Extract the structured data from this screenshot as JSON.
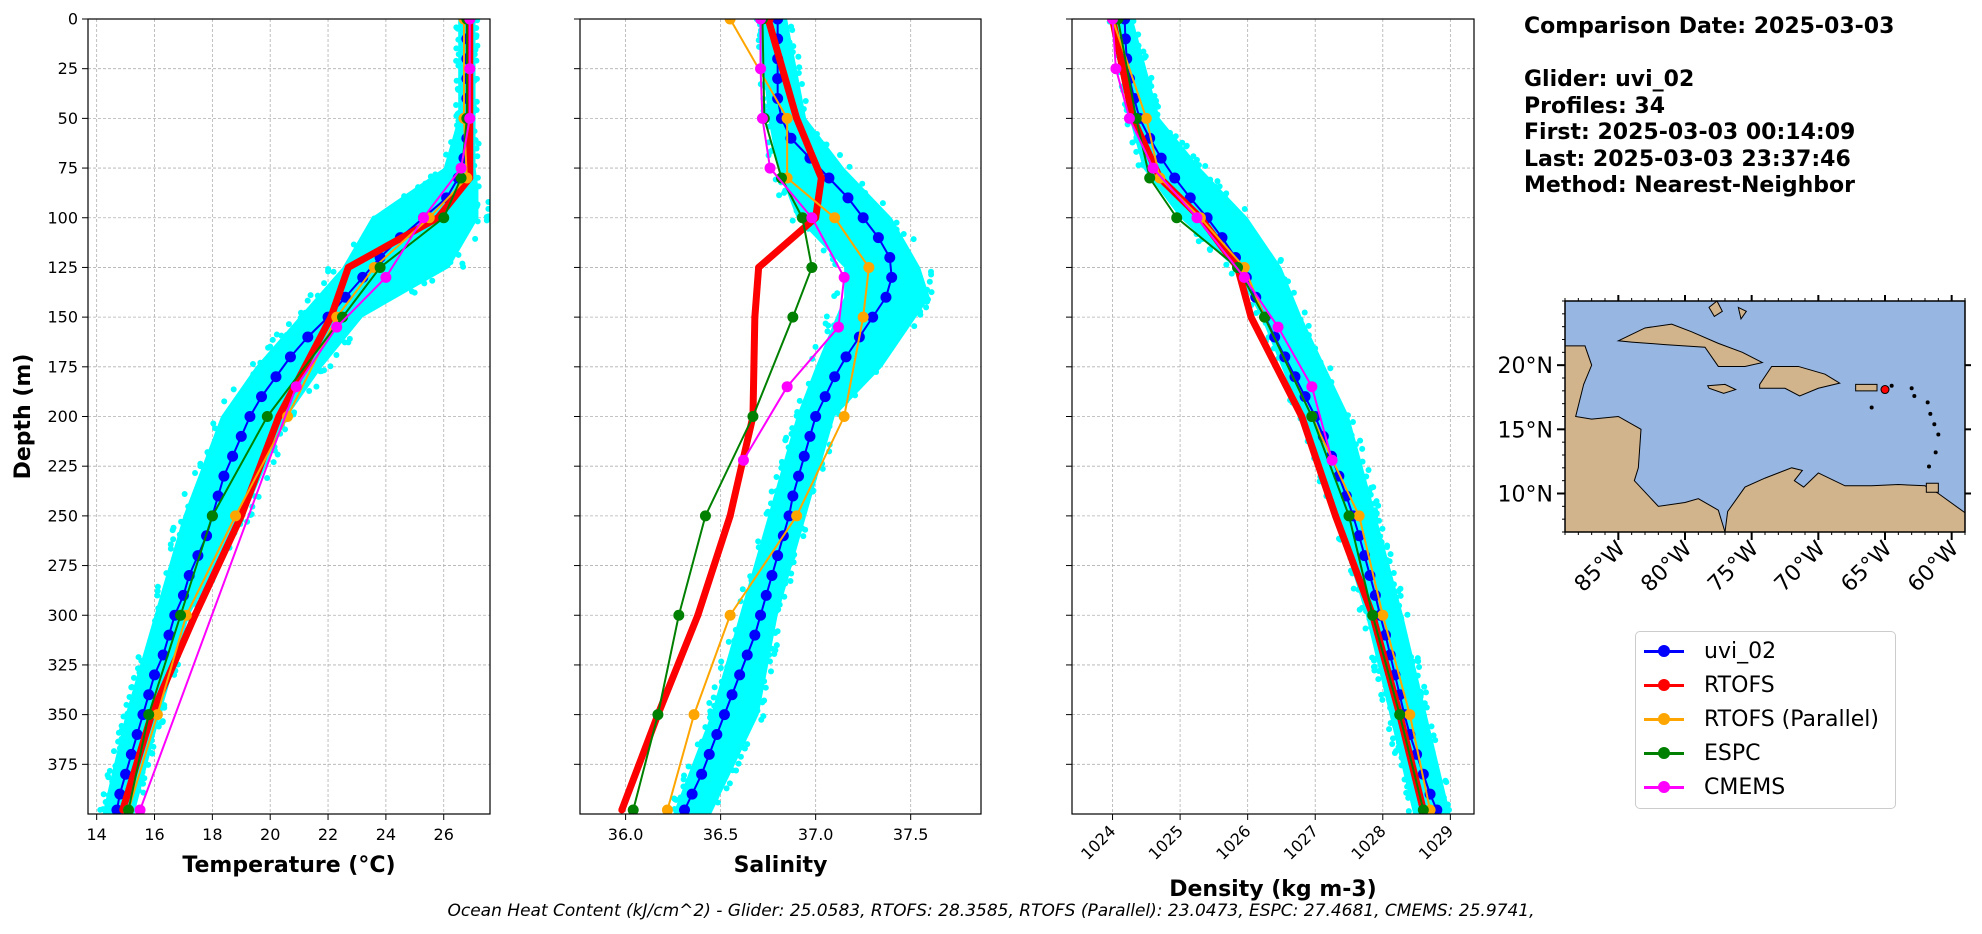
{
  "info": {
    "comparison_date": "Comparison Date: 2025-03-03",
    "glider": "Glider: uvi_02",
    "profiles": "Profiles: 34",
    "first": "First: 2025-03-03 00:14:09",
    "last": "Last: 2025-03-03 23:37:46",
    "method": "Method: Nearest-Neighbor"
  },
  "footer": {
    "ohc_text": "Ocean Heat Content (kJ/cm^2) - Glider: 25.0583,  RTOFS: 28.3585,  RTOFS (Parallel): 23.0473,  ESPC: 27.4681,  CMEMS: 25.9741,"
  },
  "colors": {
    "uvi_02": "#0000ff",
    "RTOFS": "#ff0000",
    "RTOFS (Parallel)": "#ffa500",
    "ESPC": "#008000",
    "CMEMS": "#ff00ff",
    "glider_scatter": "#00ffff",
    "ocean": "#97b6e1",
    "land": "#d2b48c"
  },
  "legend": {
    "items": [
      "uvi_02",
      "RTOFS",
      "RTOFS (Parallel)",
      "ESPC",
      "CMEMS"
    ]
  },
  "map": {
    "lat_ticks": [
      "10°N",
      "15°N",
      "20°N"
    ],
    "lon_ticks": [
      "85°W",
      "80°W",
      "75°W",
      "70°W",
      "65°W",
      "60°W"
    ],
    "lon_range": [
      -89,
      -59
    ],
    "lat_range": [
      7,
      25
    ],
    "glider_position": {
      "lon": -65.0,
      "lat": 18.1
    }
  },
  "chart_data": [
    {
      "type": "line",
      "xlabel": "Temperature (°C)",
      "ylabel": "Depth (m)",
      "xlim": [
        13.7,
        27.6
      ],
      "ylim": [
        400,
        0
      ],
      "x_ticks": [
        14,
        16,
        18,
        20,
        22,
        24,
        26
      ],
      "y_ticks": [
        0,
        25,
        50,
        75,
        100,
        125,
        150,
        175,
        200,
        225,
        250,
        275,
        300,
        325,
        350,
        375
      ],
      "grid": true,
      "glider_envelope": {
        "depth": [
          0,
          50,
          75,
          85,
          100,
          125,
          150,
          175,
          200,
          250,
          300,
          350,
          400
        ],
        "min": [
          26.5,
          26.5,
          26.0,
          25.0,
          23.5,
          22.5,
          21.0,
          19.5,
          18.3,
          17.0,
          16.0,
          15.0,
          14.2
        ],
        "max": [
          27.1,
          27.1,
          27.1,
          27.2,
          27.2,
          26.2,
          23.2,
          21.8,
          20.6,
          19.1,
          17.2,
          16.2,
          15.3
        ]
      },
      "series": [
        {
          "name": "uvi_02",
          "depth": [
            0,
            10,
            20,
            30,
            40,
            50,
            60,
            70,
            80,
            90,
            100,
            110,
            120,
            130,
            140,
            150,
            160,
            170,
            180,
            190,
            200,
            210,
            220,
            230,
            240,
            250,
            260,
            270,
            280,
            290,
            300,
            310,
            320,
            330,
            340,
            350,
            360,
            370,
            380,
            390,
            398
          ],
          "values": [
            26.8,
            26.8,
            26.8,
            26.8,
            26.8,
            26.8,
            26.8,
            26.7,
            26.5,
            26.1,
            25.3,
            24.5,
            23.8,
            23.2,
            22.6,
            22.0,
            21.3,
            20.7,
            20.2,
            19.7,
            19.3,
            19.0,
            18.7,
            18.4,
            18.2,
            18.0,
            17.8,
            17.5,
            17.2,
            17.0,
            16.7,
            16.5,
            16.3,
            16.0,
            15.8,
            15.6,
            15.4,
            15.2,
            15.0,
            14.8,
            14.7
          ]
        },
        {
          "name": "RTOFS",
          "depth": [
            0,
            50,
            80,
            100,
            125,
            150,
            200,
            250,
            300,
            350,
            398
          ],
          "values": [
            26.9,
            26.9,
            26.9,
            25.8,
            22.7,
            22.1,
            20.3,
            19.0,
            17.4,
            15.9,
            14.9
          ]
        },
        {
          "name": "RTOFS (Parallel)",
          "depth": [
            0,
            50,
            80,
            100,
            125,
            150,
            200,
            250,
            300,
            350,
            398
          ],
          "values": [
            26.7,
            26.7,
            26.8,
            25.5,
            23.6,
            22.3,
            20.6,
            18.8,
            17.1,
            16.1,
            15.1
          ]
        },
        {
          "name": "ESPC",
          "depth": [
            0,
            50,
            80,
            100,
            125,
            150,
            200,
            250,
            300,
            350,
            398
          ],
          "values": [
            26.8,
            26.8,
            26.6,
            26.0,
            23.8,
            22.5,
            19.9,
            18.0,
            16.9,
            15.8,
            15.1
          ]
        },
        {
          "name": "CMEMS",
          "depth": [
            0,
            25,
            50,
            75,
            100,
            130,
            155,
            185,
            398
          ],
          "values": [
            26.9,
            26.9,
            26.9,
            26.6,
            25.3,
            24.0,
            22.3,
            20.9,
            15.5
          ]
        }
      ]
    },
    {
      "type": "line",
      "xlabel": "Salinity",
      "xlim": [
        35.76,
        37.87
      ],
      "ylim": [
        400,
        0
      ],
      "x_ticks": [
        36.0,
        36.5,
        37.0,
        37.5
      ],
      "grid": true,
      "glider_envelope": {
        "depth": [
          0,
          50,
          75,
          100,
          125,
          140,
          175,
          200,
          250,
          300,
          350,
          400
        ],
        "min": [
          36.7,
          36.75,
          36.8,
          36.9,
          37.15,
          37.15,
          37.0,
          36.9,
          36.75,
          36.6,
          36.45,
          36.25
        ],
        "max": [
          36.85,
          36.95,
          37.15,
          37.4,
          37.55,
          37.6,
          37.35,
          37.1,
          36.95,
          36.8,
          36.7,
          36.45
        ]
      },
      "series": [
        {
          "name": "uvi_02",
          "depth": [
            0,
            10,
            20,
            30,
            40,
            50,
            60,
            70,
            80,
            90,
            100,
            110,
            120,
            130,
            140,
            150,
            160,
            170,
            180,
            190,
            200,
            210,
            220,
            230,
            240,
            250,
            260,
            270,
            280,
            290,
            300,
            310,
            320,
            330,
            340,
            350,
            360,
            370,
            380,
            390,
            398
          ],
          "values": [
            36.8,
            36.8,
            36.8,
            36.8,
            36.8,
            36.82,
            36.87,
            36.97,
            37.07,
            37.17,
            37.25,
            37.33,
            37.39,
            37.4,
            37.37,
            37.3,
            37.23,
            37.16,
            37.1,
            37.05,
            37.0,
            36.97,
            36.94,
            36.91,
            36.88,
            36.86,
            36.83,
            36.8,
            36.77,
            36.74,
            36.71,
            36.68,
            36.64,
            36.6,
            36.56,
            36.52,
            36.48,
            36.44,
            36.4,
            36.35,
            36.31
          ]
        },
        {
          "name": "RTOFS",
          "depth": [
            0,
            50,
            80,
            100,
            125,
            150,
            200,
            250,
            300,
            350,
            398
          ],
          "values": [
            36.75,
            36.9,
            37.03,
            37.0,
            36.7,
            36.68,
            36.67,
            36.55,
            36.38,
            36.17,
            35.98
          ]
        },
        {
          "name": "RTOFS (Parallel)",
          "depth": [
            0,
            50,
            80,
            100,
            125,
            150,
            200,
            250,
            300,
            350,
            398
          ],
          "values": [
            36.55,
            36.85,
            36.85,
            37.1,
            37.28,
            37.25,
            37.15,
            36.9,
            36.55,
            36.36,
            36.22
          ]
        },
        {
          "name": "ESPC",
          "depth": [
            0,
            50,
            80,
            100,
            125,
            150,
            200,
            250,
            300,
            350,
            398
          ],
          "values": [
            36.72,
            36.73,
            36.82,
            36.93,
            36.98,
            36.88,
            36.67,
            36.42,
            36.28,
            36.17,
            36.04
          ]
        },
        {
          "name": "CMEMS",
          "depth": [
            0,
            25,
            50,
            75,
            100,
            130,
            155,
            185,
            222
          ],
          "values": [
            36.71,
            36.71,
            36.72,
            36.76,
            36.98,
            37.15,
            37.12,
            36.85,
            36.62
          ]
        }
      ]
    },
    {
      "type": "line",
      "xlabel": "Density (kg m-3)",
      "xlim": [
        1023.4,
        1029.35
      ],
      "ylim": [
        400,
        0
      ],
      "x_ticks": [
        1024,
        1025,
        1026,
        1027,
        1028,
        1029
      ],
      "grid": true,
      "glider_envelope": {
        "depth": [
          0,
          50,
          75,
          100,
          125,
          150,
          200,
          250,
          300,
          350,
          400
        ],
        "min": [
          1023.95,
          1024.25,
          1024.45,
          1025.0,
          1025.8,
          1026.2,
          1026.8,
          1027.3,
          1027.75,
          1028.1,
          1028.45
        ],
        "max": [
          1024.3,
          1024.7,
          1025.3,
          1026.0,
          1026.5,
          1026.8,
          1027.5,
          1027.9,
          1028.3,
          1028.65,
          1029.0
        ]
      },
      "series": [
        {
          "name": "uvi_02",
          "depth": [
            0,
            10,
            20,
            30,
            40,
            50,
            60,
            70,
            80,
            90,
            100,
            110,
            120,
            130,
            140,
            150,
            160,
            170,
            180,
            190,
            200,
            210,
            220,
            230,
            240,
            250,
            260,
            270,
            280,
            290,
            300,
            310,
            320,
            330,
            340,
            350,
            360,
            370,
            380,
            390,
            398
          ],
          "values": [
            1024.18,
            1024.19,
            1024.21,
            1024.25,
            1024.32,
            1024.4,
            1024.55,
            1024.72,
            1024.92,
            1025.15,
            1025.4,
            1025.62,
            1025.82,
            1025.98,
            1026.12,
            1026.26,
            1026.4,
            1026.55,
            1026.7,
            1026.85,
            1027.0,
            1027.12,
            1027.24,
            1027.35,
            1027.46,
            1027.56,
            1027.65,
            1027.73,
            1027.81,
            1027.89,
            1027.96,
            1028.04,
            1028.11,
            1028.18,
            1028.25,
            1028.32,
            1028.4,
            1028.5,
            1028.6,
            1028.7,
            1028.8
          ]
        },
        {
          "name": "RTOFS",
          "depth": [
            0,
            50,
            80,
            100,
            125,
            150,
            200,
            250,
            300,
            350,
            398
          ],
          "values": [
            1024.0,
            1024.3,
            1024.7,
            1025.3,
            1025.85,
            1026.05,
            1026.8,
            1027.3,
            1027.85,
            1028.25,
            1028.6
          ]
        },
        {
          "name": "RTOFS (Parallel)",
          "depth": [
            0,
            50,
            80,
            100,
            125,
            150,
            200,
            250,
            300,
            350,
            398
          ],
          "values": [
            1024.0,
            1024.5,
            1024.7,
            1025.3,
            1025.95,
            1026.25,
            1026.95,
            1027.65,
            1028.0,
            1028.4,
            1028.7
          ]
        },
        {
          "name": "ESPC",
          "depth": [
            0,
            50,
            80,
            100,
            125,
            150,
            200,
            250,
            300,
            350,
            398
          ],
          "values": [
            1024.08,
            1024.35,
            1024.55,
            1024.95,
            1025.85,
            1026.25,
            1026.95,
            1027.5,
            1027.85,
            1028.25,
            1028.6
          ]
        },
        {
          "name": "CMEMS",
          "depth": [
            0,
            25,
            50,
            75,
            100,
            130,
            155,
            185,
            222
          ],
          "values": [
            1024.0,
            1024.05,
            1024.25,
            1024.6,
            1025.25,
            1025.95,
            1026.45,
            1026.95,
            1027.25
          ]
        }
      ]
    }
  ]
}
